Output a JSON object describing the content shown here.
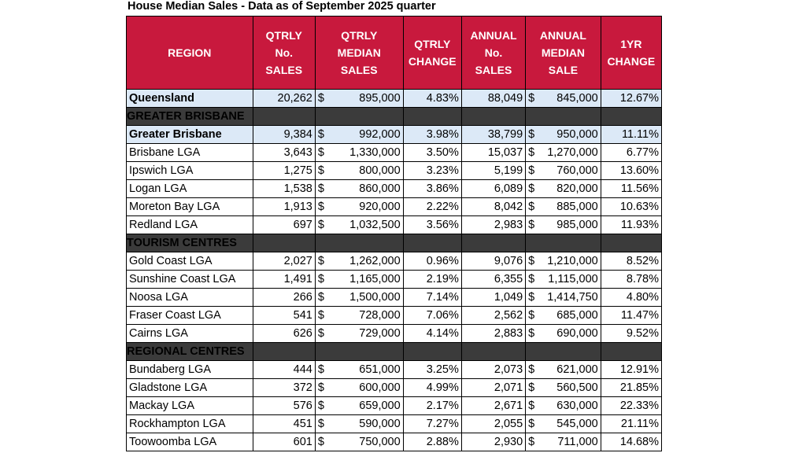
{
  "title": "House Median Sales - Data as of September 2025 quarter",
  "headers": {
    "region": "REGION",
    "qtrly_no": [
      "QTRLY",
      "No.",
      "SALES"
    ],
    "qtrly_median": [
      "QTRLY",
      "MEDIAN",
      "SALES"
    ],
    "qtrly_change": [
      "QTRLY",
      "CHANGE"
    ],
    "annual_no": [
      "ANNUAL",
      "No.",
      "SALES"
    ],
    "annual_median": [
      "ANNUAL",
      "MEDIAN",
      "SALE"
    ],
    "yr_change": [
      "1YR",
      "CHANGE"
    ]
  },
  "currency_symbol": "$",
  "rows": [
    {
      "kind": "highlight",
      "region": "Queensland",
      "qtrly_no": "20,262",
      "qtrly_median": "895,000",
      "qtrly_change": "4.83%",
      "annual_no": "88,049",
      "annual_median": "845,000",
      "yr_change": "12.67%",
      "qm_tight": false,
      "am_tight": false
    },
    {
      "kind": "section",
      "region": "GREATER BRISBANE"
    },
    {
      "kind": "highlight",
      "region": "Greater Brisbane",
      "qtrly_no": "9,384",
      "qtrly_median": "992,000",
      "qtrly_change": "3.98%",
      "annual_no": "38,799",
      "annual_median": "950,000",
      "yr_change": "11.11%",
      "qm_tight": false,
      "am_tight": false
    },
    {
      "kind": "normal",
      "region": "Brisbane LGA",
      "qtrly_no": "3,643",
      "qtrly_median": "1,330,000",
      "qtrly_change": "3.50%",
      "annual_no": "15,037",
      "annual_median": "1,270,000",
      "yr_change": "6.77%",
      "qm_tight": false,
      "am_tight": true
    },
    {
      "kind": "normal",
      "region": "Ipswich LGA",
      "qtrly_no": "1,275",
      "qtrly_median": "800,000",
      "qtrly_change": "3.23%",
      "annual_no": "5,199",
      "annual_median": "760,000",
      "yr_change": "13.60%",
      "qm_tight": false,
      "am_tight": false
    },
    {
      "kind": "normal",
      "region": "Logan LGA",
      "qtrly_no": "1,538",
      "qtrly_median": "860,000",
      "qtrly_change": "3.86%",
      "annual_no": "6,089",
      "annual_median": "820,000",
      "yr_change": "11.56%",
      "qm_tight": false,
      "am_tight": false
    },
    {
      "kind": "normal",
      "region": "Moreton Bay LGA",
      "qtrly_no": "1,913",
      "qtrly_median": "920,000",
      "qtrly_change": "2.22%",
      "annual_no": "8,042",
      "annual_median": "885,000",
      "yr_change": "10.63%",
      "qm_tight": false,
      "am_tight": false
    },
    {
      "kind": "normal",
      "region": "Redland LGA",
      "qtrly_no": "697",
      "qtrly_median": "1,032,500",
      "qtrly_change": "3.56%",
      "annual_no": "2,983",
      "annual_median": "985,000",
      "yr_change": "11.93%",
      "qm_tight": false,
      "am_tight": false
    },
    {
      "kind": "section",
      "region": "TOURISM CENTRES"
    },
    {
      "kind": "normal",
      "region": "Gold Coast LGA",
      "qtrly_no": "2,027",
      "qtrly_median": "1,262,000",
      "qtrly_change": "0.96%",
      "annual_no": "9,076",
      "annual_median": "1,210,000",
      "yr_change": "8.52%",
      "qm_tight": false,
      "am_tight": true
    },
    {
      "kind": "normal",
      "region": "Sunshine Coast LGA",
      "qtrly_no": "1,491",
      "qtrly_median": "1,165,000",
      "qtrly_change": "2.19%",
      "annual_no": "6,355",
      "annual_median": "1,115,000",
      "yr_change": "8.78%",
      "qm_tight": false,
      "am_tight": true
    },
    {
      "kind": "normal",
      "region": "Noosa LGA",
      "qtrly_no": "266",
      "qtrly_median": "1,500,000",
      "qtrly_change": "7.14%",
      "annual_no": "1,049",
      "annual_median": "1,414,750",
      "yr_change": "4.80%",
      "qm_tight": false,
      "am_tight": true
    },
    {
      "kind": "normal",
      "region": "Fraser Coast LGA",
      "qtrly_no": "541",
      "qtrly_median": "728,000",
      "qtrly_change": "7.06%",
      "annual_no": "2,562",
      "annual_median": "685,000",
      "yr_change": "11.47%",
      "qm_tight": false,
      "am_tight": false
    },
    {
      "kind": "normal",
      "region": "Cairns LGA",
      "qtrly_no": "626",
      "qtrly_median": "729,000",
      "qtrly_change": "4.14%",
      "annual_no": "2,883",
      "annual_median": "690,000",
      "yr_change": "9.52%",
      "qm_tight": false,
      "am_tight": false
    },
    {
      "kind": "section",
      "region": "REGIONAL CENTRES"
    },
    {
      "kind": "normal",
      "region": "Bundaberg LGA",
      "qtrly_no": "444",
      "qtrly_median": "651,000",
      "qtrly_change": "3.25%",
      "annual_no": "2,073",
      "annual_median": "621,000",
      "yr_change": "12.91%",
      "qm_tight": false,
      "am_tight": false
    },
    {
      "kind": "normal",
      "region": "Gladstone LGA",
      "qtrly_no": "372",
      "qtrly_median": "600,000",
      "qtrly_change": "4.99%",
      "annual_no": "2,071",
      "annual_median": "560,500",
      "yr_change": "21.85%",
      "qm_tight": false,
      "am_tight": false
    },
    {
      "kind": "normal",
      "region": "Mackay LGA",
      "qtrly_no": "576",
      "qtrly_median": "659,000",
      "qtrly_change": "2.17%",
      "annual_no": "2,671",
      "annual_median": "630,000",
      "yr_change": "22.33%",
      "qm_tight": false,
      "am_tight": false
    },
    {
      "kind": "normal",
      "region": "Rockhampton LGA",
      "qtrly_no": "451",
      "qtrly_median": "590,000",
      "qtrly_change": "7.27%",
      "annual_no": "2,055",
      "annual_median": "545,000",
      "yr_change": "21.11%",
      "qm_tight": false,
      "am_tight": false
    },
    {
      "kind": "normal",
      "region": "Toowoomba LGA",
      "qtrly_no": "601",
      "qtrly_median": "750,000",
      "qtrly_change": "2.88%",
      "annual_no": "2,930",
      "annual_median": "711,000",
      "yr_change": "14.68%",
      "qm_tight": false,
      "am_tight": false
    }
  ],
  "colors": {
    "header_bg": "#c8193d",
    "section_bg": "#3b3b3b",
    "highlight_bg": "#dce9f7"
  }
}
